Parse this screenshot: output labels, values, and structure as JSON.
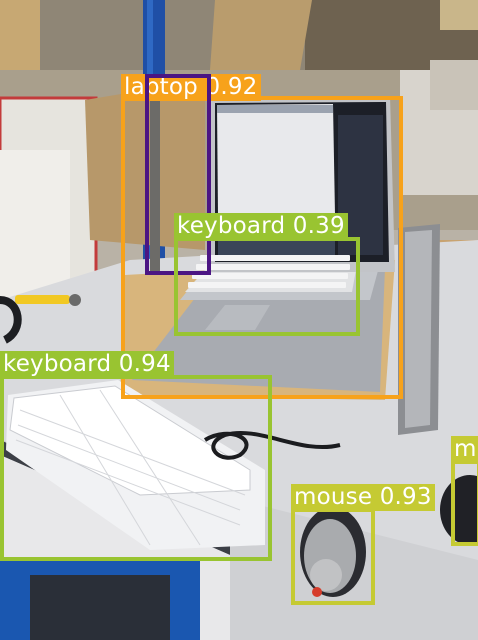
{
  "image": {
    "description_free_colors": {
      "laptop": "#f7a21b",
      "keyboard": "#99c431",
      "mouse": "#c5ca33",
      "stand": "#4b1583"
    }
  },
  "detections": [
    {
      "id": "laptop",
      "label": "laptop 0.92",
      "color": "#f7a21b"
    },
    {
      "id": "keyboard-laptop",
      "label": "keyboard 0.39",
      "color": "#99c431"
    },
    {
      "id": "keyboard-main",
      "label": "keyboard 0.94",
      "color": "#99c431"
    },
    {
      "id": "mouse",
      "label": "mouse 0.93",
      "color": "#c5ca33"
    },
    {
      "id": "mouse-edge",
      "label": "m",
      "color": "#c5ca33"
    },
    {
      "id": "stand",
      "label": "",
      "color": "#4b1583"
    }
  ]
}
